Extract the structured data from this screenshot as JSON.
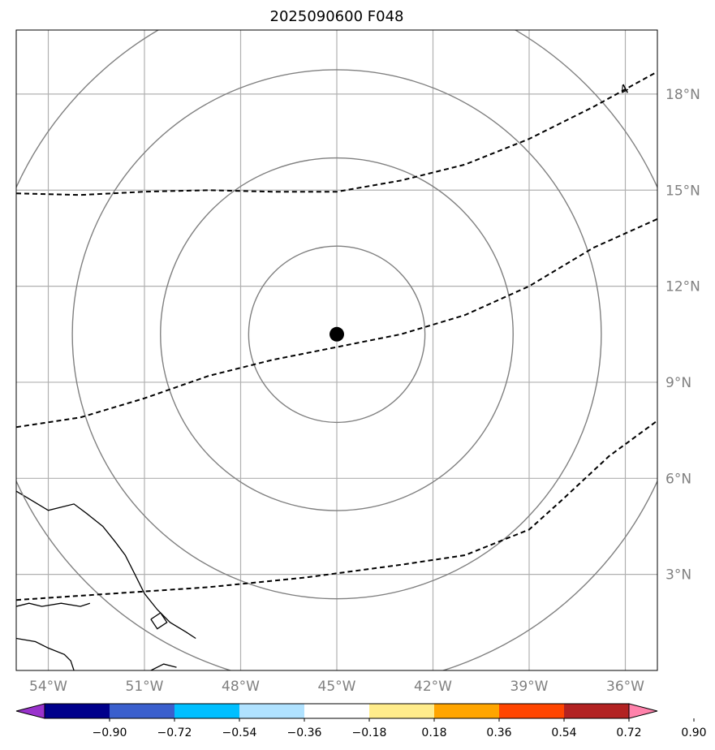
{
  "title": "2025090600 F048",
  "map": {
    "lon_range": [
      -55.0,
      -35.0
    ],
    "lat_range": [
      0.0,
      20.0
    ],
    "grid": true,
    "grid_color": "#b0b0b0",
    "x_ticks": [
      {
        "lon": -54,
        "label": "54°W"
      },
      {
        "lon": -51,
        "label": "51°W"
      },
      {
        "lon": -48,
        "label": "48°W"
      },
      {
        "lon": -45,
        "label": "45°W"
      },
      {
        "lon": -42,
        "label": "42°W"
      },
      {
        "lon": -39,
        "label": "39°W"
      },
      {
        "lon": -36,
        "label": "36°W"
      }
    ],
    "y_ticks": [
      {
        "lat": 18,
        "label": "18°N"
      },
      {
        "lat": 15,
        "label": "15°N"
      },
      {
        "lat": 12,
        "label": "12°N"
      },
      {
        "lat": 9,
        "label": "9°N"
      },
      {
        "lat": 6,
        "label": "6°N"
      },
      {
        "lat": 3,
        "label": "3°N"
      }
    ],
    "storm_center": {
      "lon": -45.0,
      "lat": 10.5
    },
    "range_rings_deg": [
      2.75,
      5.5,
      8.25,
      11.0
    ],
    "ring_color": "#808080",
    "contour_label": "4",
    "contours": [
      [
        [
          -55,
          14.9
        ],
        [
          -53,
          14.85
        ],
        [
          -51,
          14.95
        ],
        [
          -49,
          15.0
        ],
        [
          -47,
          14.95
        ],
        [
          -45,
          14.95
        ],
        [
          -43,
          15.3
        ],
        [
          -41,
          15.8
        ],
        [
          -39,
          16.6
        ],
        [
          -37,
          17.6
        ],
        [
          -35,
          18.7
        ]
      ],
      [
        [
          -55,
          7.6
        ],
        [
          -53,
          7.9
        ],
        [
          -51,
          8.5
        ],
        [
          -49,
          9.2
        ],
        [
          -47,
          9.7
        ],
        [
          -45,
          10.1
        ],
        [
          -43,
          10.5
        ],
        [
          -41,
          11.1
        ],
        [
          -39,
          12.0
        ],
        [
          -37,
          13.2
        ],
        [
          -35,
          14.1
        ]
      ],
      [
        [
          -55,
          2.2
        ],
        [
          -52,
          2.4
        ],
        [
          -49,
          2.6
        ],
        [
          -46,
          2.9
        ],
        [
          -43,
          3.3
        ],
        [
          -41,
          3.6
        ],
        [
          -39,
          4.4
        ],
        [
          -38,
          5.3
        ],
        [
          -36.5,
          6.7
        ],
        [
          -35,
          7.8
        ]
      ]
    ],
    "coastlines": [
      [
        [
          -55,
          5.6
        ],
        [
          -54.5,
          5.3
        ],
        [
          -54.0,
          5.0
        ],
        [
          -53.2,
          5.2
        ],
        [
          -52.8,
          4.9
        ],
        [
          -52.3,
          4.5
        ],
        [
          -51.9,
          4.0
        ],
        [
          -51.6,
          3.6
        ],
        [
          -51.3,
          3.0
        ],
        [
          -51.0,
          2.4
        ],
        [
          -50.6,
          1.9
        ],
        [
          -50.2,
          1.5
        ],
        [
          -49.7,
          1.2
        ],
        [
          -49.4,
          1.0
        ]
      ],
      [
        [
          -50.8,
          1.6
        ],
        [
          -50.5,
          1.8
        ],
        [
          -50.3,
          1.5
        ],
        [
          -50.6,
          1.3
        ],
        [
          -50.8,
          1.6
        ]
      ],
      [
        [
          -55,
          2.0
        ],
        [
          -54.6,
          2.1
        ],
        [
          -54.2,
          2.0
        ],
        [
          -53.6,
          2.1
        ],
        [
          -53.0,
          2.0
        ],
        [
          -52.7,
          2.1
        ]
      ],
      [
        [
          -55,
          1.0
        ],
        [
          -54.4,
          0.9
        ],
        [
          -54.0,
          0.7
        ],
        [
          -53.5,
          0.5
        ],
        [
          -53.3,
          0.3
        ],
        [
          -53.2,
          0.0
        ]
      ],
      [
        [
          -50.8,
          0.0
        ],
        [
          -50.4,
          0.2
        ],
        [
          -50.0,
          0.1
        ]
      ]
    ]
  },
  "colorbar": {
    "colors": [
      "#9932cc",
      "#00008b",
      "#3a5fcd",
      "#00bfff",
      "#b0e2ff",
      "#ffffff",
      "#ffec8b",
      "#ffa500",
      "#ff4500",
      "#b22222",
      "#ff82ab"
    ],
    "tick_labels": [
      "−0.90",
      "−0.72",
      "−0.54",
      "−0.36",
      "−0.18",
      "0.18",
      "0.36",
      "0.54",
      "0.72",
      "0.90"
    ]
  }
}
